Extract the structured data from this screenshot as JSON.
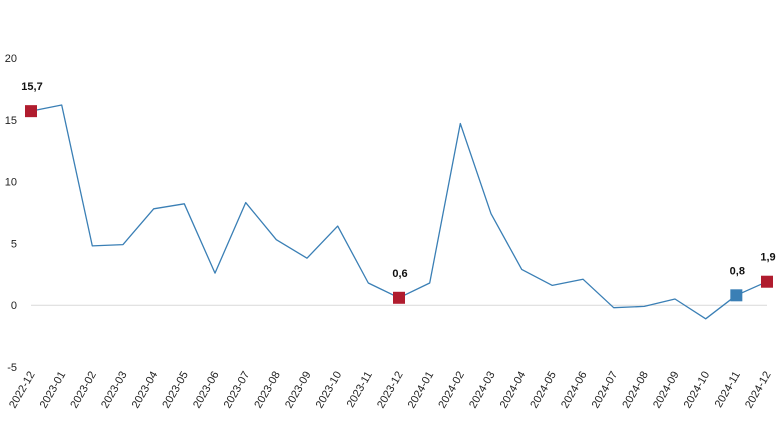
{
  "chart_data": {
    "type": "line",
    "title": "",
    "xlabel": "",
    "ylabel": "",
    "ylim": [
      -5,
      20
    ],
    "yticks": [
      -5,
      0,
      5,
      10,
      15,
      20
    ],
    "grid": false,
    "legend": "none",
    "categories": [
      "2022-12",
      "2023-01",
      "2023-02",
      "2023-03",
      "2023-04",
      "2023-05",
      "2023-06",
      "2023-07",
      "2023-08",
      "2023-09",
      "2023-10",
      "2023-11",
      "2023-12",
      "2024-01",
      "2024-02",
      "2024-03",
      "2024-04",
      "2024-05",
      "2024-06",
      "2024-07",
      "2024-08",
      "2024-09",
      "2024-10",
      "2024-11",
      "2024-12"
    ],
    "series": [
      {
        "color": "#3a7fb5",
        "values": [
          15.7,
          16.2,
          4.8,
          4.9,
          7.8,
          8.2,
          2.6,
          8.3,
          5.3,
          3.8,
          6.4,
          1.8,
          0.6,
          1.8,
          14.7,
          7.4,
          2.9,
          1.6,
          2.1,
          -0.2,
          -0.1,
          0.5,
          -1.1,
          0.8,
          1.9
        ]
      }
    ],
    "highlights": [
      {
        "index": 0,
        "label": "15,7",
        "color": "#b01c2e"
      },
      {
        "index": 12,
        "label": "0,6",
        "color": "#b01c2e"
      },
      {
        "index": 23,
        "label": "0,8",
        "color": "#3a7fb5"
      },
      {
        "index": 24,
        "label": "1,9",
        "color": "#b01c2e"
      }
    ],
    "zero_line_color": "#d9d9d9"
  }
}
